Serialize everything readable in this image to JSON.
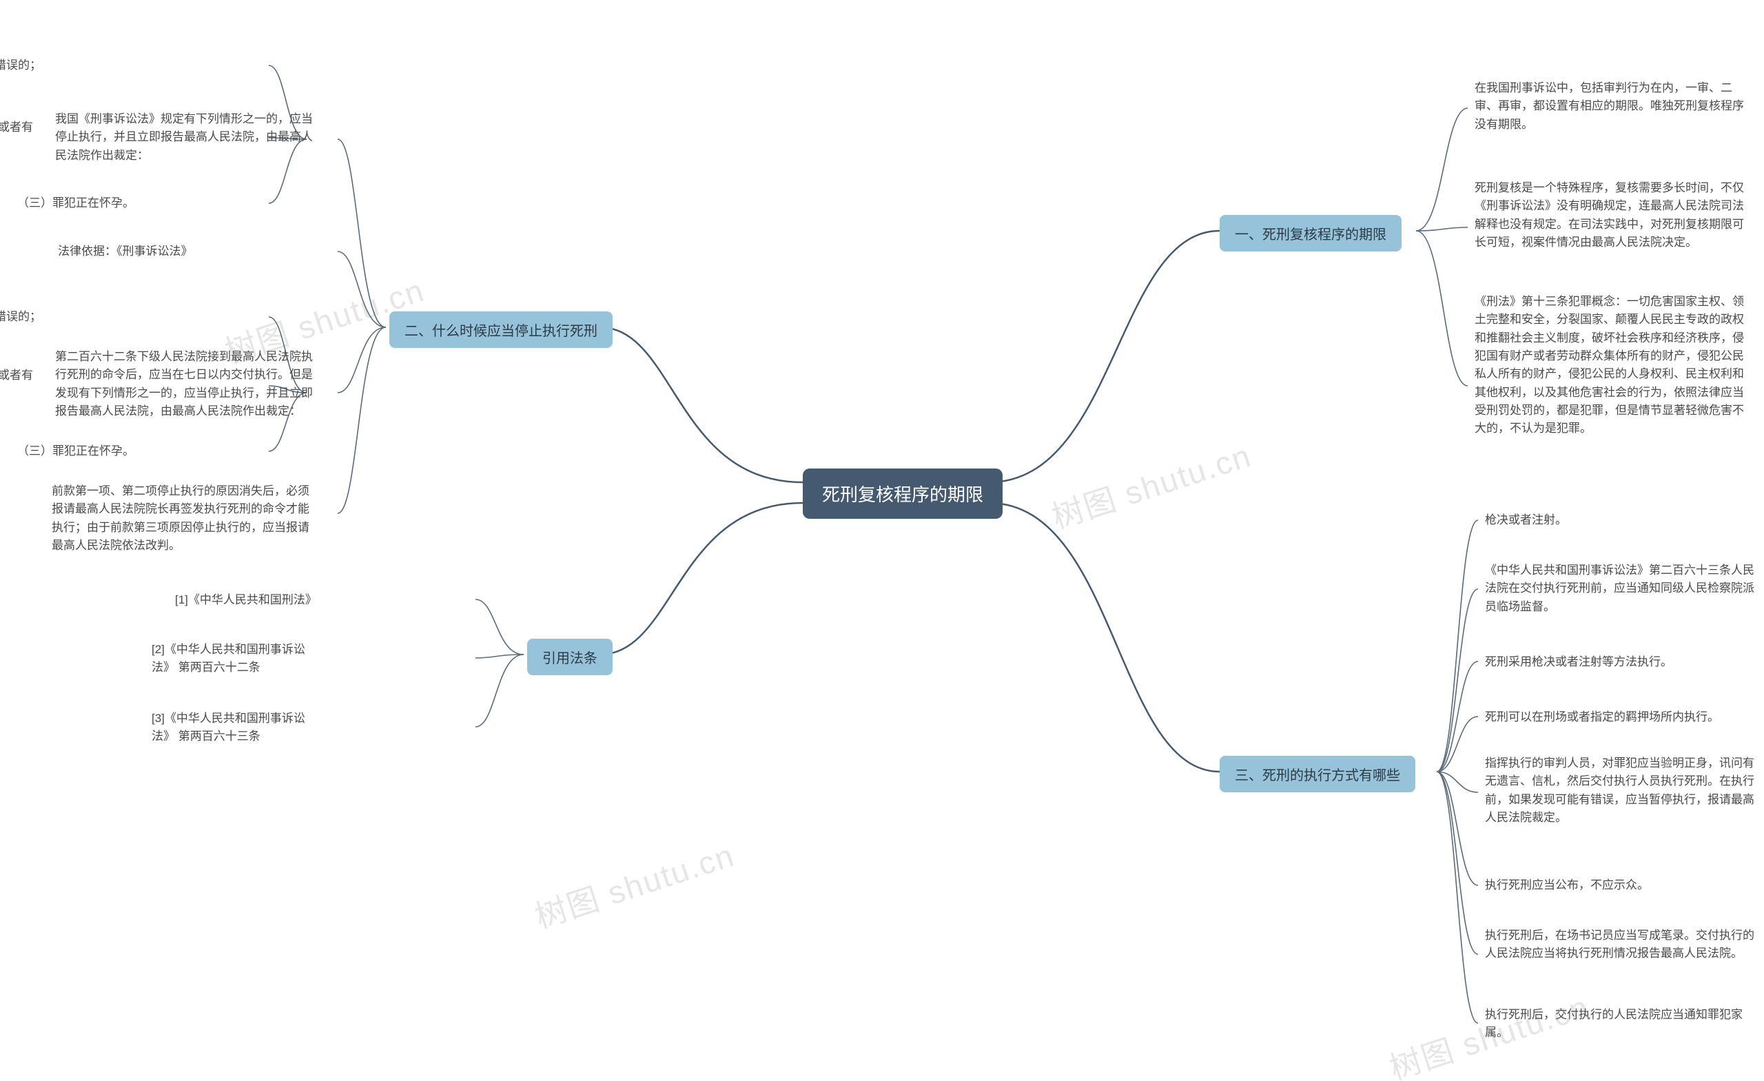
{
  "colors": {
    "root_bg": "#455a70",
    "root_text": "#ffffff",
    "main_bg": "#96c3d9",
    "main_text": "#2b3a45",
    "leaf_text": "#4a4a4a",
    "connector": "#455a70",
    "bracket": "#5a6b7a",
    "background": "#ffffff",
    "watermark": "#e6e6e6"
  },
  "structure_type": "mindmap",
  "font_sizes": {
    "root": 26,
    "main": 20,
    "leaf": 17,
    "watermark": 46
  },
  "root": {
    "label": "死刑复核程序的期限"
  },
  "right": {
    "b1": {
      "label": "一、死刑复核程序的期限",
      "children": {
        "c1": "在我国刑事诉讼中，包括审判行为在内，一审、二审、再审，都设置有相应的期限。唯独死刑复核程序没有期限。",
        "c2": "死刑复核是一个特殊程序，复核需要多长时间，不仅《刑事诉讼法》没有明确规定，连最高人民法院司法解释也没有规定。在司法实践中，对死刑复核期限可长可短，视案件情况由最高人民法院决定。",
        "c3": "《刑法》第十三条犯罪概念：一切危害国家主权、领土完整和安全，分裂国家、颠覆人民民主专政的政权和推翻社会主义制度，破坏社会秩序和经济秩序，侵犯国有财产或者劳动群众集体所有的财产，侵犯公民私人所有的财产，侵犯公民的人身权利、民主权利和其他权利，以及其他危害社会的行为，依照法律应当受刑罚处罚的，都是犯罪，但是情节显著轻微危害不大的，不认为是犯罪。"
      }
    },
    "b3": {
      "label": "三、死刑的执行方式有哪些",
      "children": {
        "c1": "枪决或者注射。",
        "c2": "《中华人民共和国刑事诉讼法》第二百六十三条人民法院在交付执行死刑前，应当通知同级人民检察院派员临场监督。",
        "c3": "死刑采用枪决或者注射等方法执行。",
        "c4": "死刑可以在刑场或者指定的羁押场所内执行。",
        "c5": "指挥执行的审判人员，对罪犯应当验明正身，讯问有无遗言、信札，然后交付执行人员执行死刑。在执行前，如果发现可能有错误，应当暂停执行，报请最高人民法院裁定。",
        "c6": "执行死刑应当公布，不应示众。",
        "c7": "执行死刑后，在场书记员应当写成笔录。交付执行的人民法院应当将执行死刑情况报告最高人民法院。",
        "c8": "执行死刑后，交付执行的人民法院应当通知罪犯家属。"
      }
    }
  },
  "left": {
    "b2": {
      "label": "二、什么时候应当停止执行死刑",
      "children": {
        "c1": {
          "label": "我国《刑事诉讼法》规定有下列情形之一的，应当停止执行，并且立即报告最高人民法院，由最高人民法院作出裁定：",
          "sub": {
            "s1": "（一）在执行前发现判决可能有错误的；",
            "s2": "（二）在执行前罪犯揭发重大犯罪事实或者有其他重大立功表现，可能需要改判的；",
            "s3": "（三）罪犯正在怀孕。"
          }
        },
        "c2": {
          "label": "法律依据：《刑事诉讼法》"
        },
        "c3": {
          "label": "第二百六十二条下级人民法院接到最高人民法院执行死刑的命令后，应当在七日以内交付执行。但是发现有下列情形之一的，应当停止执行，并且立即报告最高人民法院，由最高人民法院作出裁定：",
          "sub": {
            "s1": "（一）在执行前发现判决可能有错误的；",
            "s2": "（二）在执行前罪犯揭发重大犯罪事实或者有其他重大立功表现，可能需要改判的；",
            "s3": "（三）罪犯正在怀孕。"
          }
        },
        "c4": {
          "label": "前款第一项、第二项停止执行的原因消失后，必须报请最高人民法院院长再签发执行死刑的命令才能执行；由于前款第三项原因停止执行的，应当报请最高人民法院依法改判。"
        }
      }
    },
    "b4": {
      "label": "引用法条",
      "children": {
        "c1": "[1]《中华人民共和国刑法》",
        "c2": "[2]《中华人民共和国刑事诉讼法》 第两百六十二条",
        "c3": "[3]《中华人民共和国刑事诉讼法》 第两百六十三条"
      }
    }
  },
  "watermark": "树图 shutu.cn"
}
